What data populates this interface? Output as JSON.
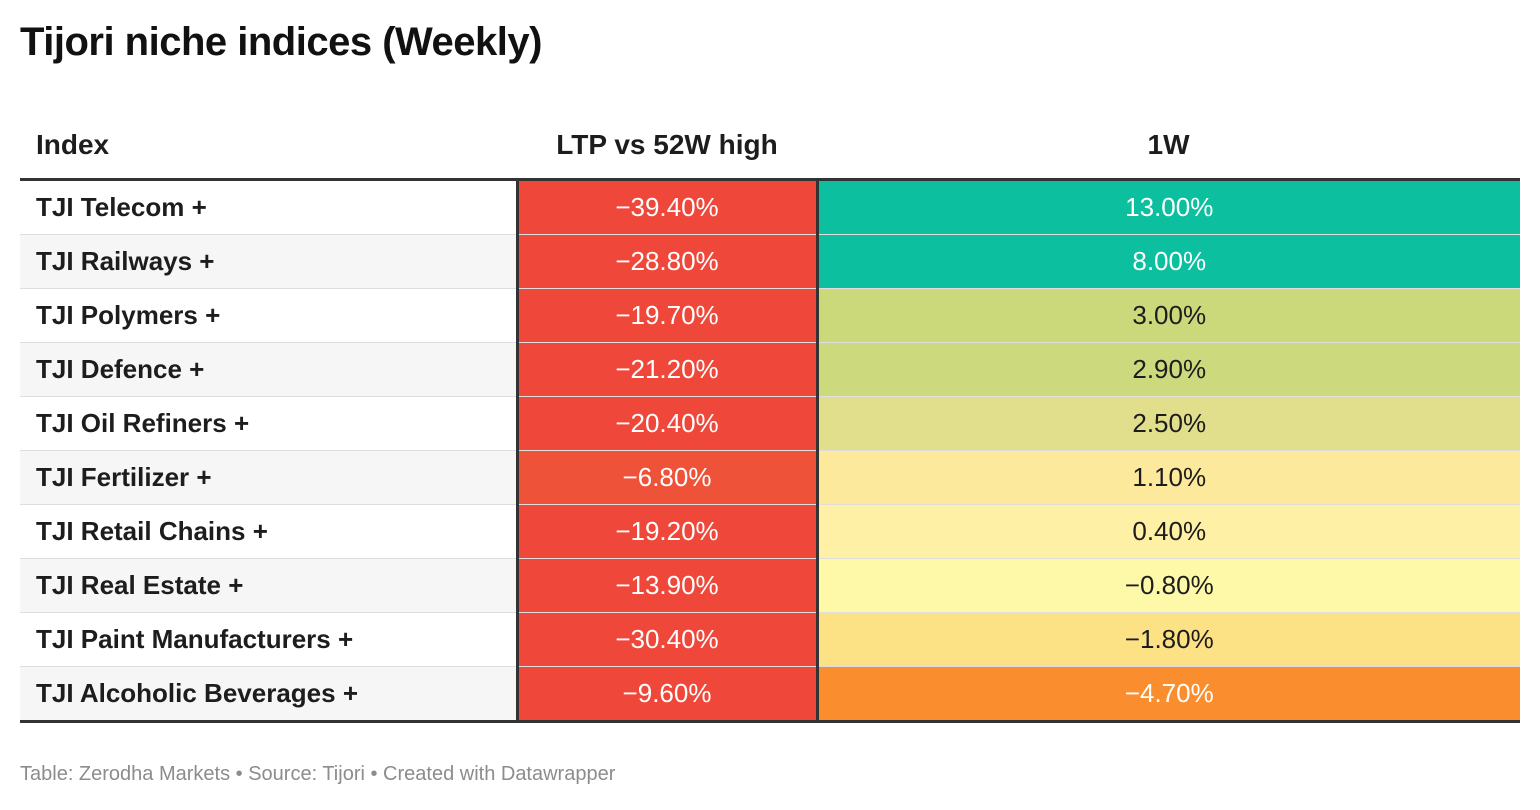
{
  "title": "Tijori niche indices (Weekly)",
  "footer": "Table: Zerodha Markets • Source: Tijori • Created with Datawrapper",
  "chart_data": {
    "type": "table",
    "columns": [
      "Index",
      "LTP vs 52W high",
      "1W"
    ],
    "rows": [
      {
        "index": "TJI Telecom +",
        "ltp": "−39.40%",
        "w1": "13.00%",
        "ltp_value": -39.4,
        "w1_value": 13.0,
        "ltp_color": "#ef473a",
        "w1_color": "#0bbf9f",
        "ltp_text_color": "#ffffff",
        "w1_text_color": "#ffffff"
      },
      {
        "index": "TJI Railways +",
        "ltp": "−28.80%",
        "w1": "8.00%",
        "ltp_value": -28.8,
        "w1_value": 8.0,
        "ltp_color": "#ef473a",
        "w1_color": "#0bbf9f",
        "ltp_text_color": "#ffffff",
        "w1_text_color": "#ffffff"
      },
      {
        "index": "TJI Polymers +",
        "ltp": "−19.70%",
        "w1": "3.00%",
        "ltp_value": -19.7,
        "w1_value": 3.0,
        "ltp_color": "#ef473a",
        "w1_color": "#cbd97b",
        "ltp_text_color": "#ffffff",
        "w1_text_color": "#1d1d1d"
      },
      {
        "index": "TJI Defence +",
        "ltp": "−21.20%",
        "w1": "2.90%",
        "ltp_value": -21.2,
        "w1_value": 2.9,
        "ltp_color": "#ef473a",
        "w1_color": "#cdd97d",
        "ltp_text_color": "#ffffff",
        "w1_text_color": "#1d1d1d"
      },
      {
        "index": "TJI Oil Refiners +",
        "ltp": "−20.40%",
        "w1": "2.50%",
        "ltp_value": -20.4,
        "w1_value": 2.5,
        "ltp_color": "#ef473a",
        "w1_color": "#e2df8c",
        "ltp_text_color": "#ffffff",
        "w1_text_color": "#1d1d1d"
      },
      {
        "index": "TJI Fertilizer +",
        "ltp": "−6.80%",
        "w1": "1.10%",
        "ltp_value": -6.8,
        "w1_value": 1.1,
        "ltp_color": "#ee5238",
        "w1_color": "#fde99c",
        "ltp_text_color": "#ffffff",
        "w1_text_color": "#1d1d1d"
      },
      {
        "index": "TJI Retail Chains +",
        "ltp": "−19.20%",
        "w1": "0.40%",
        "ltp_value": -19.2,
        "w1_value": 0.4,
        "ltp_color": "#ef473a",
        "w1_color": "#fef1a5",
        "ltp_text_color": "#ffffff",
        "w1_text_color": "#1d1d1d"
      },
      {
        "index": "TJI Real Estate +",
        "ltp": "−13.90%",
        "w1": "−0.80%",
        "ltp_value": -13.9,
        "w1_value": -0.8,
        "ltp_color": "#ef473a",
        "w1_color": "#fef9a8",
        "ltp_text_color": "#ffffff",
        "w1_text_color": "#1d1d1d"
      },
      {
        "index": "TJI Paint Manufacturers +",
        "ltp": "−30.40%",
        "w1": "−1.80%",
        "ltp_value": -30.4,
        "w1_value": -1.8,
        "ltp_color": "#ef473a",
        "w1_color": "#fde185",
        "ltp_text_color": "#ffffff",
        "w1_text_color": "#1d1d1d"
      },
      {
        "index": "TJI Alcoholic Beverages +",
        "ltp": "−9.60%",
        "w1": "−4.70%",
        "ltp_value": -9.6,
        "w1_value": -4.7,
        "ltp_color": "#ef473a",
        "w1_color": "#fa8d2e",
        "ltp_text_color": "#ffffff",
        "w1_text_color": "#ffffff"
      }
    ]
  }
}
